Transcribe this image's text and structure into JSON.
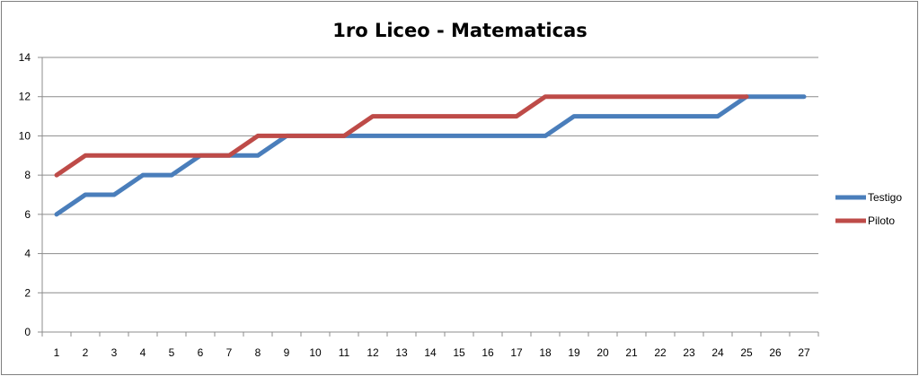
{
  "chart_data": {
    "type": "line",
    "title": "1ro Liceo - Matematicas",
    "xlabel": "",
    "ylabel": "",
    "categories": [
      "1",
      "2",
      "3",
      "4",
      "5",
      "6",
      "7",
      "8",
      "9",
      "10",
      "11",
      "12",
      "13",
      "14",
      "15",
      "16",
      "17",
      "18",
      "19",
      "20",
      "21",
      "22",
      "23",
      "24",
      "25",
      "26",
      "27"
    ],
    "ylim": [
      0,
      14
    ],
    "yticks": [
      0,
      2,
      4,
      6,
      8,
      10,
      12,
      14
    ],
    "grid": "horizontal",
    "legend_position": "right",
    "series": [
      {
        "name": "Testigo",
        "color": "#4a7ebb",
        "values": [
          6,
          7,
          7,
          8,
          8,
          9,
          9,
          9,
          10,
          10,
          10,
          10,
          10,
          10,
          10,
          10,
          10,
          10,
          11,
          11,
          11,
          11,
          11,
          11,
          12,
          12,
          12
        ]
      },
      {
        "name": "Piloto",
        "color": "#be4b48",
        "values": [
          8,
          9,
          9,
          9,
          9,
          9,
          9,
          10,
          10,
          10,
          10,
          11,
          11,
          11,
          11,
          11,
          11,
          12,
          12,
          12,
          12,
          12,
          12,
          12,
          12,
          null,
          null
        ]
      }
    ]
  }
}
